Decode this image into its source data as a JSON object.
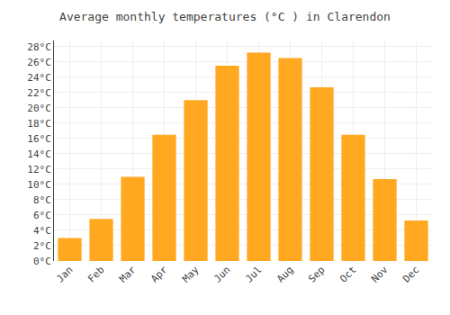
{
  "chart_data": {
    "type": "bar",
    "title": "Average monthly temperatures (°C ) in Clarendon",
    "categories": [
      "Jan",
      "Feb",
      "Mar",
      "Apr",
      "May",
      "Jun",
      "Jul",
      "Aug",
      "Sep",
      "Oct",
      "Nov",
      "Dec"
    ],
    "values": [
      3.0,
      5.5,
      11.0,
      16.5,
      21.0,
      25.5,
      27.2,
      26.5,
      22.7,
      16.5,
      10.7,
      5.3
    ],
    "color": "#FFA820",
    "ylim": [
      0,
      28.8
    ],
    "yticks": [
      {
        "value": 0,
        "label": "0°C"
      },
      {
        "value": 2,
        "label": "2°C"
      },
      {
        "value": 4,
        "label": "4°C"
      },
      {
        "value": 6,
        "label": "6°C"
      },
      {
        "value": 8,
        "label": "8°C"
      },
      {
        "value": 10,
        "label": "10°C"
      },
      {
        "value": 12,
        "label": "12°C"
      },
      {
        "value": 14,
        "label": "14°C"
      },
      {
        "value": 16,
        "label": "16°C"
      },
      {
        "value": 18,
        "label": "18°C"
      },
      {
        "value": 20,
        "label": "20°C"
      },
      {
        "value": 22,
        "label": "22°C"
      },
      {
        "value": 24,
        "label": "24°C"
      },
      {
        "value": 26,
        "label": "26°C"
      },
      {
        "value": 28,
        "label": "28°C"
      }
    ],
    "grid": true
  }
}
